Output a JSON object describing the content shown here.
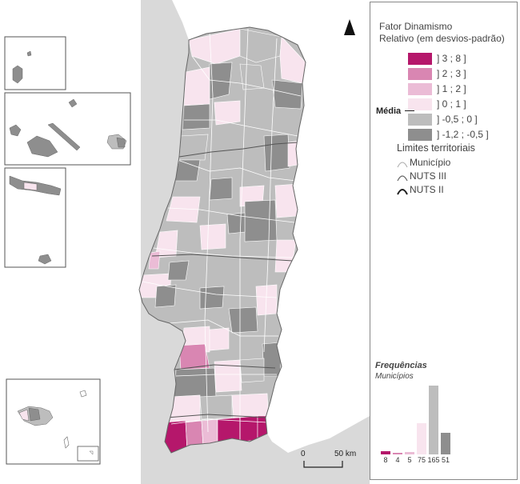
{
  "legend": {
    "title_line1": "Fator Dinamismo",
    "title_line2": "Relativo (em desvios-padrão)",
    "classes": [
      {
        "label": "] 3 ; 8 ]",
        "color": "#b5176b"
      },
      {
        "label": "] 2 ; 3 ]",
        "color": "#d986b2"
      },
      {
        "label": "] 1 ; 2 ]",
        "color": "#ebbcd6"
      },
      {
        "label": "] 0 ; 1 ]",
        "color": "#f8e4ee"
      },
      {
        "label": "] -0,5 ; 0 ]",
        "color": "#bdbdbd"
      },
      {
        "label": "] -1,2 ; -0,5 ]",
        "color": "#8e8e8e"
      }
    ],
    "media_label": "Média",
    "limits_title": "Limites territoriais",
    "limits": [
      {
        "label": "Município"
      },
      {
        "label": "NUTS III"
      },
      {
        "label": "NUTS II"
      }
    ]
  },
  "frequencies": {
    "title": "Frequências",
    "subtitle": "Municípios",
    "values": [
      8,
      4,
      5,
      75,
      165,
      51
    ]
  },
  "scale": {
    "start": "0",
    "end": "50",
    "unit": "km"
  },
  "colors": {
    "sea": "#d9d9d9",
    "spain": "#ffffff",
    "border": "#555555"
  }
}
